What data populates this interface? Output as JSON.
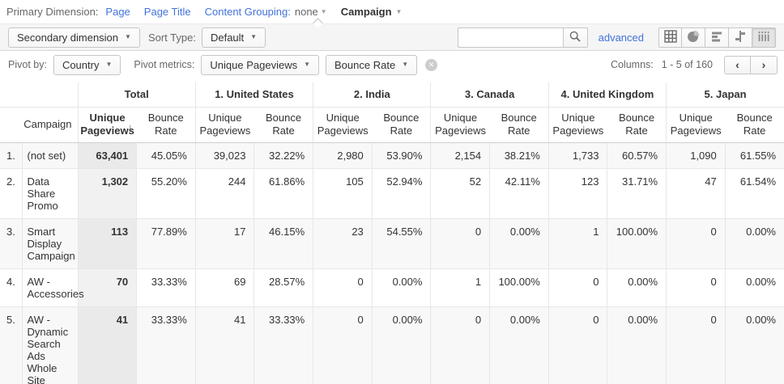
{
  "colors": {
    "link_blue": "#4272db",
    "header_text": "#333333",
    "muted_label": "#666666",
    "row_alt": "#f8f8f8",
    "sorted_overlay": "#e9e9e9",
    "border": "#e7e7e7"
  },
  "primary_bar": {
    "label": "Primary Dimension:",
    "page": "Page",
    "page_title": "Page Title",
    "content_grouping": "Content Grouping:",
    "content_grouping_value": "none",
    "campaign": "Campaign"
  },
  "toolbar": {
    "secondary_dimension": "Secondary dimension",
    "sort_type_label": "Sort Type:",
    "sort_type_value": "Default",
    "search_value": "",
    "advanced": "advanced",
    "view_icons": [
      "table-view-icon",
      "percentage-view-icon",
      "performance-view-icon",
      "comparison-view-icon",
      "pivot-view-icon"
    ],
    "active_view": "pivot-view-icon"
  },
  "pivot_bar": {
    "pivot_by_label": "Pivot by:",
    "pivot_by_value": "Country",
    "pivot_metrics_label": "Pivot metrics:",
    "pivot_metric_1": "Unique Pageviews",
    "pivot_metric_2": "Bounce Rate",
    "columns_label": "Columns:",
    "columns_range": "1 - 5 of 160"
  },
  "table": {
    "dimension_header": "Campaign",
    "metric_headers": [
      "Unique Pageviews",
      "Bounce Rate"
    ],
    "groups": [
      "Total",
      "1. United States",
      "2. India",
      "3. Canada",
      "4. United Kingdom",
      "5. Japan"
    ],
    "sorted_column": {
      "group_index": 0,
      "metric_index": 0,
      "direction": "descending"
    },
    "rows": [
      {
        "num": "1.",
        "campaign": "(not set)",
        "values": [
          "63,401",
          "45.05%",
          "39,023",
          "32.22%",
          "2,980",
          "53.90%",
          "2,154",
          "38.21%",
          "1,733",
          "60.57%",
          "1,090",
          "61.55%"
        ]
      },
      {
        "num": "2.",
        "campaign": "Data Share Promo",
        "values": [
          "1,302",
          "55.20%",
          "244",
          "61.86%",
          "105",
          "52.94%",
          "52",
          "42.11%",
          "123",
          "31.71%",
          "47",
          "61.54%"
        ]
      },
      {
        "num": "3.",
        "campaign": "Smart Display Campaign",
        "values": [
          "113",
          "77.89%",
          "17",
          "46.15%",
          "23",
          "54.55%",
          "0",
          "0.00%",
          "1",
          "100.00%",
          "0",
          "0.00%"
        ]
      },
      {
        "num": "4.",
        "campaign": "AW - Accessories",
        "values": [
          "70",
          "33.33%",
          "69",
          "28.57%",
          "0",
          "0.00%",
          "1",
          "100.00%",
          "0",
          "0.00%",
          "0",
          "0.00%"
        ]
      },
      {
        "num": "5.",
        "campaign": "AW - Dynamic Search Ads Whole Site",
        "values": [
          "41",
          "33.33%",
          "41",
          "33.33%",
          "0",
          "0.00%",
          "0",
          "0.00%",
          "0",
          "0.00%",
          "0",
          "0.00%"
        ]
      }
    ]
  }
}
